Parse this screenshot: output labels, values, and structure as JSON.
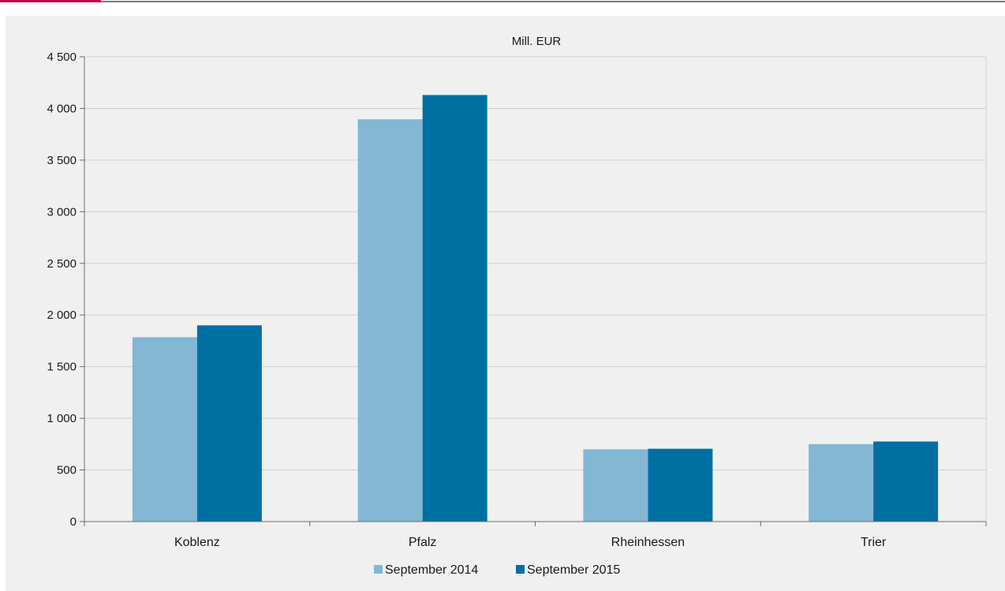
{
  "colors": {
    "accent": "#c5003e",
    "series_2014": "#82b8d4",
    "series_2015": "#0070a3",
    "grid": "#cfcfcf",
    "axis": "#6b6b6b",
    "background": "#f0f0f0"
  },
  "chart_data": {
    "type": "bar",
    "title": "",
    "unit_label": "Mill. EUR",
    "xlabel": "",
    "ylabel": "",
    "categories": [
      "Koblenz",
      "Pfalz",
      "Rheinhessen",
      "Trier"
    ],
    "series": [
      {
        "name": "September 2014",
        "values": [
          1785,
          3895,
          700,
          750
        ]
      },
      {
        "name": "September 2015",
        "values": [
          1900,
          4130,
          705,
          775
        ]
      }
    ],
    "ylim": [
      0,
      4500
    ],
    "yticks": [
      0,
      500,
      1000,
      1500,
      2000,
      2500,
      3000,
      3500,
      4000,
      4500
    ],
    "ytick_labels": [
      "0",
      "500",
      "1 000",
      "1 500",
      "2 000",
      "2 500",
      "3 000",
      "3 500",
      "4 000",
      "4 500"
    ],
    "grid": true,
    "legend_position": "bottom-center"
  }
}
